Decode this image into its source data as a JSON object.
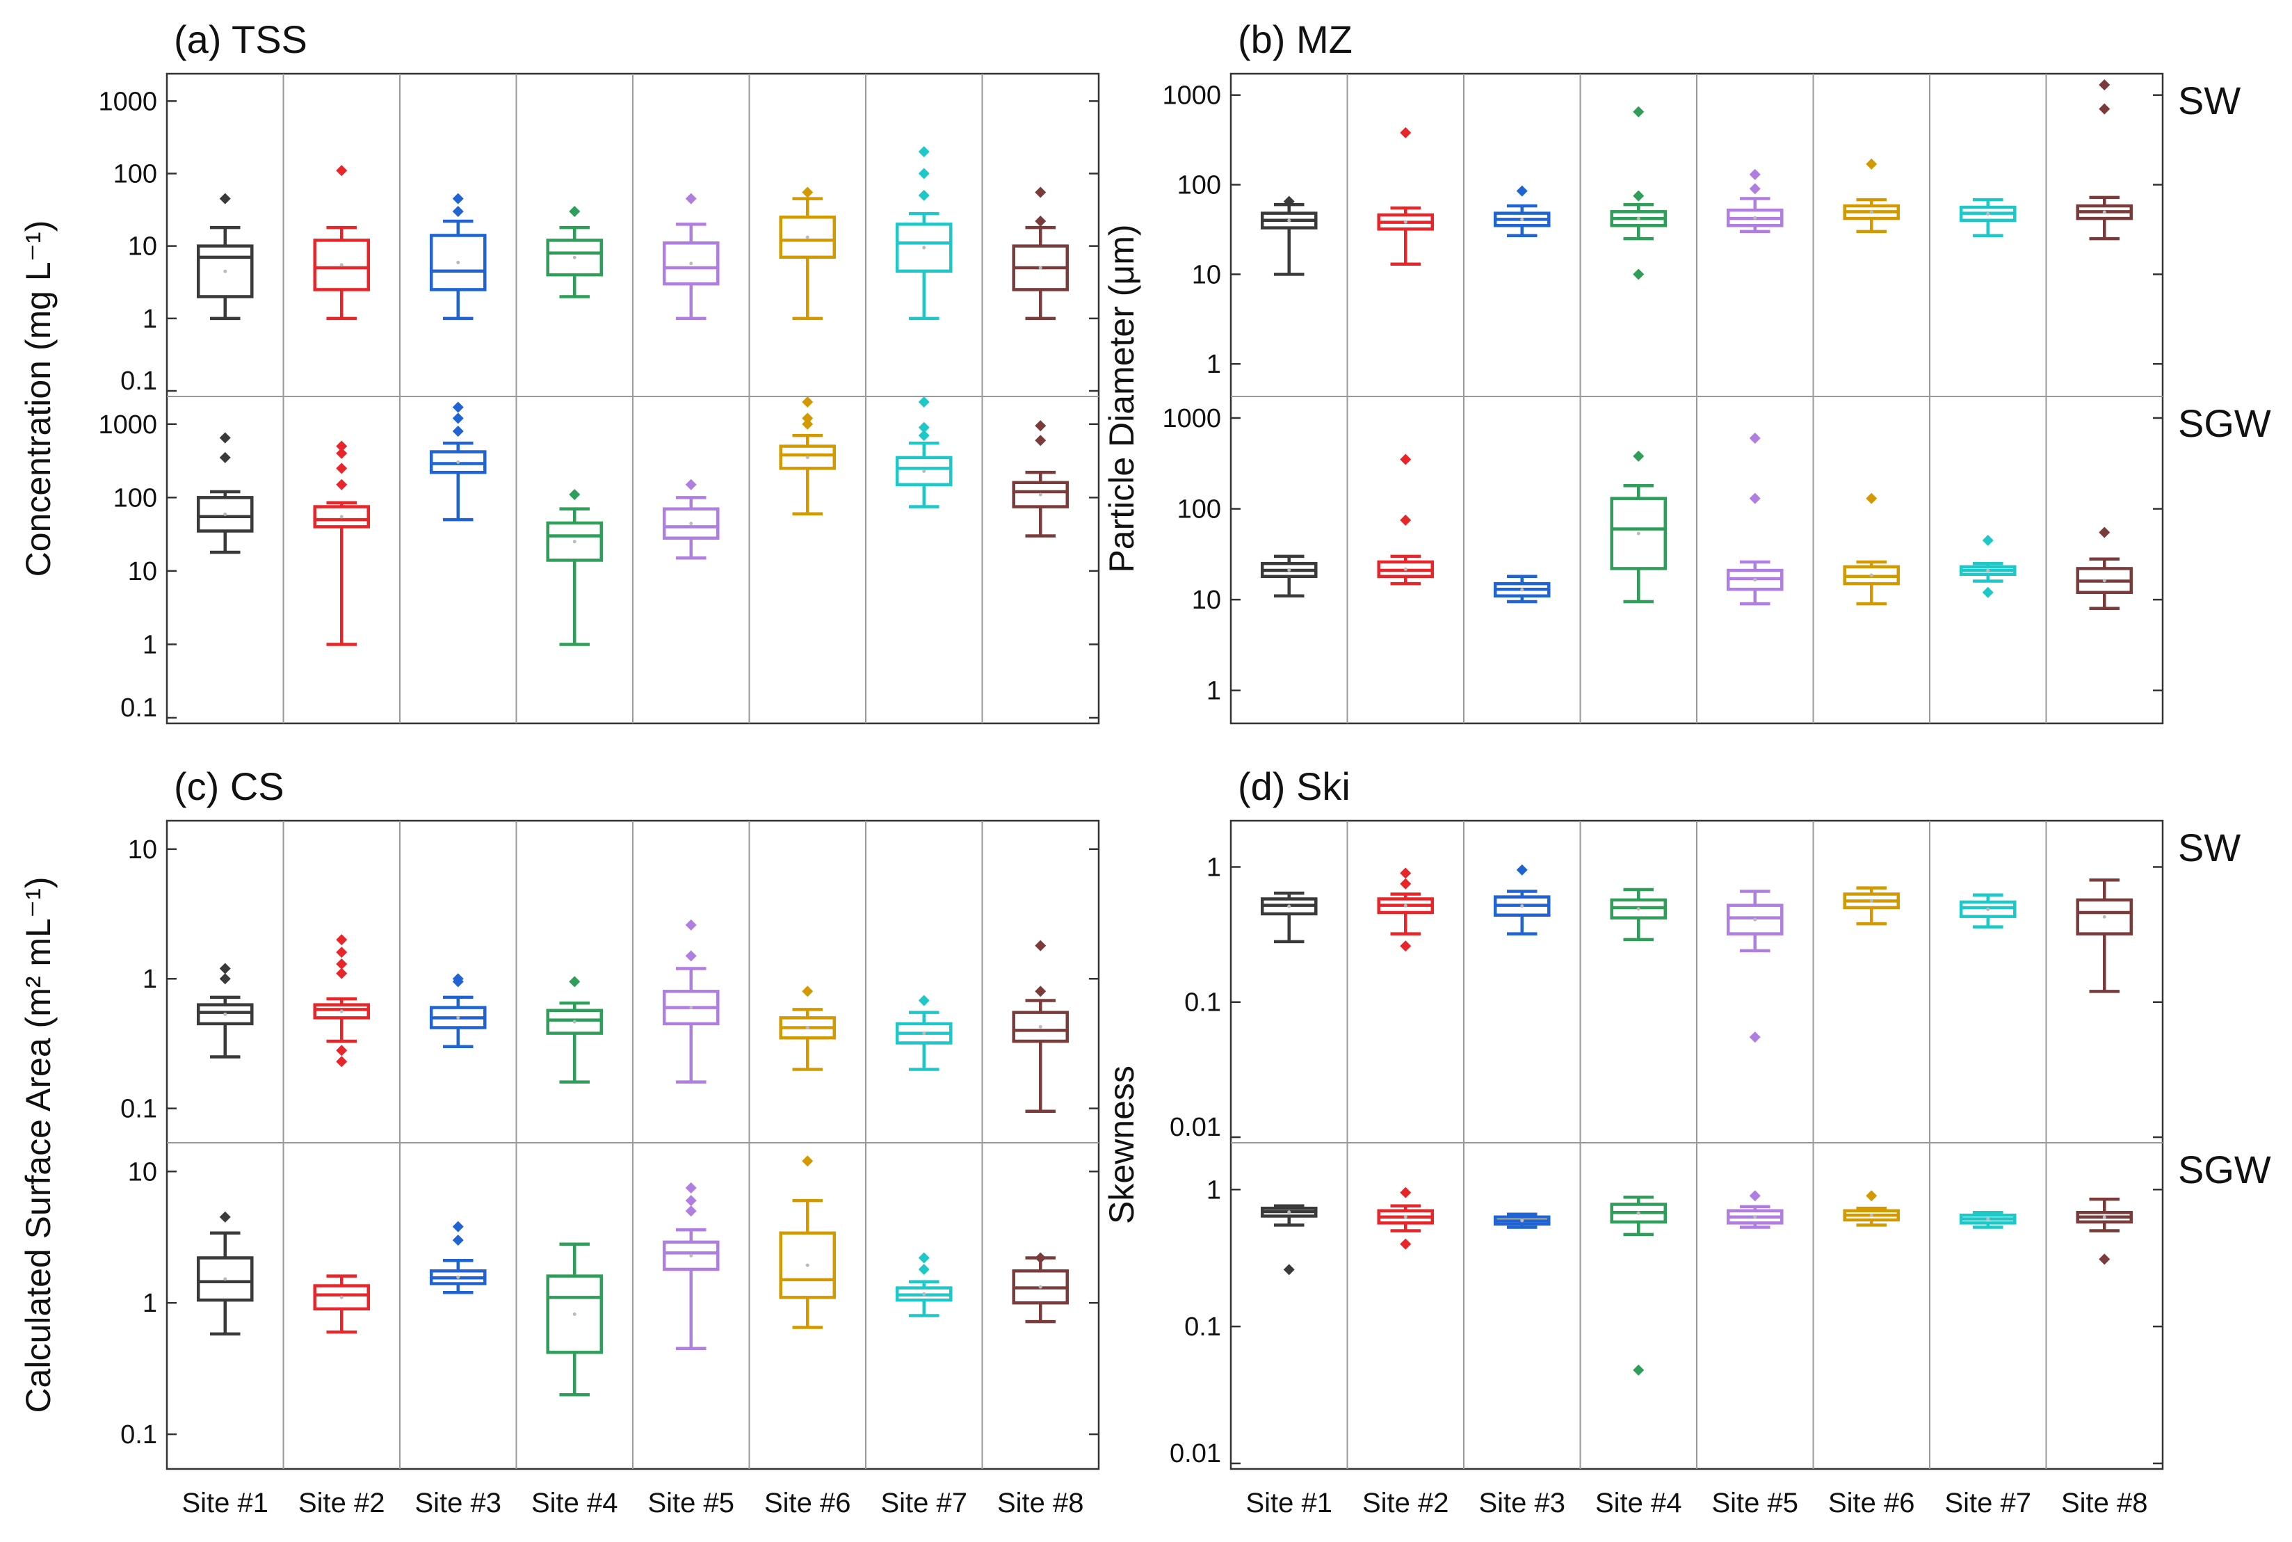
{
  "chart_data": {
    "type": "box",
    "sites": [
      "Site #1",
      "Site #2",
      "Site #3",
      "Site #4",
      "Site #5",
      "Site #6",
      "Site #7",
      "Site #8"
    ],
    "colors": [
      "#3a3a3a",
      "#e8262a",
      "#1f64d2",
      "#2e9e59",
      "#b07ee0",
      "#d39a00",
      "#1ec8c8",
      "#7a3b3b"
    ],
    "groups": [
      "SW",
      "SGW"
    ],
    "panels": [
      {
        "title": "(a) TSS",
        "ylabel": "Concentration (mg L⁻¹)",
        "scale": "log",
        "sub": [
          {
            "group": "SW",
            "ylim": [
              0.1,
              2000
            ],
            "ticks": [
              "1000",
              "100",
              "10",
              "1",
              "0.1"
            ],
            "tickvals": [
              1000,
              100,
              10,
              1,
              0.1
            ],
            "boxes": [
              {
                "q1": 2,
                "med": 7,
                "q3": 10,
                "lo": 1,
                "hi": 18,
                "out": [
                  45
                ]
              },
              {
                "q1": 2.5,
                "med": 5,
                "q3": 12,
                "lo": 1,
                "hi": 18,
                "out": [
                  110
                ]
              },
              {
                "q1": 2.5,
                "med": 4.5,
                "q3": 14,
                "lo": 1,
                "hi": 22,
                "out": [
                  30,
                  45
                ]
              },
              {
                "q1": 4,
                "med": 8,
                "q3": 12,
                "lo": 2,
                "hi": 18,
                "out": [
                  30
                ]
              },
              {
                "q1": 3,
                "med": 5,
                "q3": 11,
                "lo": 1,
                "hi": 20,
                "out": [
                  45
                ]
              },
              {
                "q1": 7,
                "med": 12,
                "q3": 25,
                "lo": 1,
                "hi": 45,
                "out": [
                  55
                ]
              },
              {
                "q1": 4.5,
                "med": 11,
                "q3": 20,
                "lo": 1,
                "hi": 28,
                "out": [
                  50,
                  100,
                  200
                ]
              },
              {
                "q1": 2.5,
                "med": 5,
                "q3": 10,
                "lo": 1,
                "hi": 18,
                "out": [
                  22,
                  55
                ]
              }
            ]
          },
          {
            "group": "SGW",
            "ylim": [
              0.1,
              2000
            ],
            "ticks": [
              "1000",
              "100",
              "10",
              "1",
              "0.1"
            ],
            "tickvals": [
              1000,
              100,
              10,
              1,
              0.1
            ],
            "boxes": [
              {
                "q1": 35,
                "med": 55,
                "q3": 100,
                "lo": 18,
                "hi": 120,
                "out": [
                  350,
                  650
                ]
              },
              {
                "q1": 40,
                "med": 50,
                "q3": 75,
                "lo": 1,
                "hi": 85,
                "out": [
                  150,
                  250,
                  400,
                  500
                ]
              },
              {
                "q1": 220,
                "med": 290,
                "q3": 420,
                "lo": 50,
                "hi": 550,
                "out": [
                  800,
                  1200,
                  1700
                ]
              },
              {
                "q1": 14,
                "med": 30,
                "q3": 45,
                "lo": 1,
                "hi": 70,
                "out": [
                  110
                ]
              },
              {
                "q1": 28,
                "med": 40,
                "q3": 70,
                "lo": 15,
                "hi": 100,
                "out": [
                  150
                ]
              },
              {
                "q1": 250,
                "med": 380,
                "q3": 500,
                "lo": 60,
                "hi": 700,
                "out": [
                  1000,
                  1200,
                  2000
                ]
              },
              {
                "q1": 150,
                "med": 250,
                "q3": 350,
                "lo": 75,
                "hi": 550,
                "out": [
                  700,
                  900,
                  2000
                ]
              },
              {
                "q1": 75,
                "med": 120,
                "q3": 160,
                "lo": 30,
                "hi": 220,
                "out": [
                  600,
                  950
                ]
              }
            ]
          }
        ]
      },
      {
        "title": "(b) MZ",
        "ylabel": "Particle Diameter (μm)",
        "scale": "log",
        "sub": [
          {
            "group": "SW",
            "ylim": [
              0.5,
              1500
            ],
            "ticks": [
              "1000",
              "100",
              "10",
              "1"
            ],
            "tickvals": [
              1000,
              100,
              10,
              1
            ],
            "boxes": [
              {
                "q1": 33,
                "med": 40,
                "q3": 48,
                "lo": 10,
                "hi": 60,
                "out": [
                  65
                ]
              },
              {
                "q1": 32,
                "med": 38,
                "q3": 46,
                "lo": 13,
                "hi": 55,
                "out": [
                  380
                ]
              },
              {
                "q1": 35,
                "med": 41,
                "q3": 48,
                "lo": 27,
                "hi": 58,
                "out": [
                  85
                ]
              },
              {
                "q1": 35,
                "med": 42,
                "q3": 50,
                "lo": 25,
                "hi": 60,
                "out": [
                  10,
                  75,
                  650
                ]
              },
              {
                "q1": 35,
                "med": 42,
                "q3": 52,
                "lo": 30,
                "hi": 70,
                "out": [
                  90,
                  130
                ]
              },
              {
                "q1": 42,
                "med": 50,
                "q3": 58,
                "lo": 30,
                "hi": 68,
                "out": [
                  170
                ]
              },
              {
                "q1": 40,
                "med": 48,
                "q3": 56,
                "lo": 27,
                "hi": 68,
                "out": []
              },
              {
                "q1": 42,
                "med": 50,
                "q3": 58,
                "lo": 25,
                "hi": 72,
                "out": [
                  700,
                  1300
                ]
              }
            ]
          },
          {
            "group": "SGW",
            "ylim": [
              0.5,
              1500
            ],
            "ticks": [
              "1000",
              "100",
              "10",
              "1"
            ],
            "tickvals": [
              1000,
              100,
              10,
              1
            ],
            "boxes": [
              {
                "q1": 18,
                "med": 21,
                "q3": 25,
                "lo": 11,
                "hi": 30,
                "out": []
              },
              {
                "q1": 18,
                "med": 21,
                "q3": 26,
                "lo": 15,
                "hi": 30,
                "out": [
                  75,
                  350
                ]
              },
              {
                "q1": 11,
                "med": 13,
                "q3": 15,
                "lo": 9.5,
                "hi": 18,
                "out": []
              },
              {
                "q1": 22,
                "med": 60,
                "q3": 130,
                "lo": 9.5,
                "hi": 180,
                "out": [
                  380
                ]
              },
              {
                "q1": 13,
                "med": 17,
                "q3": 21,
                "lo": 9,
                "hi": 26,
                "out": [
                  130,
                  600
                ]
              },
              {
                "q1": 15,
                "med": 18,
                "q3": 23,
                "lo": 9,
                "hi": 26,
                "out": [
                  130
                ]
              },
              {
                "q1": 19,
                "med": 21,
                "q3": 23,
                "lo": 16,
                "hi": 25,
                "out": [
                  12,
                  45
                ]
              },
              {
                "q1": 12,
                "med": 16,
                "q3": 22,
                "lo": 8,
                "hi": 28,
                "out": [
                  55
                ]
              }
            ]
          }
        ]
      },
      {
        "title": "(c) CS",
        "ylabel": "Calculated Surface Area (m² mL⁻¹)",
        "scale": "log",
        "sub": [
          {
            "group": "SW",
            "ylim": [
              0.06,
              15
            ],
            "ticks": [
              "10",
              "1",
              "0.1"
            ],
            "tickvals": [
              10,
              1,
              0.1
            ],
            "boxes": [
              {
                "q1": 0.45,
                "med": 0.55,
                "q3": 0.63,
                "lo": 0.25,
                "hi": 0.72,
                "out": [
                  1,
                  1.2
                ]
              },
              {
                "q1": 0.5,
                "med": 0.58,
                "q3": 0.63,
                "lo": 0.33,
                "hi": 0.7,
                "out": [
                  0.23,
                  0.28,
                  1.1,
                  1.3,
                  1.6,
                  2
                ]
              },
              {
                "q1": 0.42,
                "med": 0.5,
                "q3": 0.6,
                "lo": 0.3,
                "hi": 0.72,
                "out": [
                  0.95,
                  1
                ]
              },
              {
                "q1": 0.38,
                "med": 0.48,
                "q3": 0.57,
                "lo": 0.16,
                "hi": 0.65,
                "out": [
                  0.95
                ]
              },
              {
                "q1": 0.45,
                "med": 0.6,
                "q3": 0.8,
                "lo": 0.16,
                "hi": 1.2,
                "out": [
                  1.5,
                  2.6
                ]
              },
              {
                "q1": 0.35,
                "med": 0.42,
                "q3": 0.5,
                "lo": 0.2,
                "hi": 0.58,
                "out": [
                  0.8
                ]
              },
              {
                "q1": 0.32,
                "med": 0.38,
                "q3": 0.45,
                "lo": 0.2,
                "hi": 0.55,
                "out": [
                  0.68
                ]
              },
              {
                "q1": 0.33,
                "med": 0.4,
                "q3": 0.55,
                "lo": 0.095,
                "hi": 0.68,
                "out": [
                  0.8,
                  1.8
                ]
              }
            ]
          },
          {
            "group": "SGW",
            "ylim": [
              0.06,
              15
            ],
            "ticks": [
              "10",
              "1",
              "0.1"
            ],
            "tickvals": [
              10,
              1,
              0.1
            ],
            "boxes": [
              {
                "q1": 1.05,
                "med": 1.45,
                "q3": 2.2,
                "lo": 0.58,
                "hi": 3.4,
                "out": [
                  4.5
                ]
              },
              {
                "q1": 0.9,
                "med": 1.15,
                "q3": 1.35,
                "lo": 0.6,
                "hi": 1.6,
                "out": []
              },
              {
                "q1": 1.4,
                "med": 1.55,
                "q3": 1.75,
                "lo": 1.2,
                "hi": 2.1,
                "out": [
                  3,
                  3.8
                ]
              },
              {
                "q1": 0.42,
                "med": 1.1,
                "q3": 1.6,
                "lo": 0.2,
                "hi": 2.8,
                "out": []
              },
              {
                "q1": 1.8,
                "med": 2.4,
                "q3": 2.9,
                "lo": 0.45,
                "hi": 3.6,
                "out": [
                  5,
                  6,
                  7.5
                ]
              },
              {
                "q1": 1.1,
                "med": 1.5,
                "q3": 3.4,
                "lo": 0.65,
                "hi": 6,
                "out": [
                  12
                ]
              },
              {
                "q1": 1.05,
                "med": 1.15,
                "q3": 1.3,
                "lo": 0.8,
                "hi": 1.45,
                "out": [
                  1.8,
                  2.2
                ]
              },
              {
                "q1": 1,
                "med": 1.3,
                "q3": 1.75,
                "lo": 0.72,
                "hi": 2.2,
                "out": [
                  2.2
                ]
              }
            ]
          }
        ]
      },
      {
        "title": "(d) Ski",
        "ylabel": "Skewness",
        "scale": "log",
        "sub": [
          {
            "group": "SW",
            "ylim": [
              0.01,
              2
            ],
            "ticks": [
              "1",
              "0.1",
              "0.01"
            ],
            "tickvals": [
              1,
              0.1,
              0.01
            ],
            "boxes": [
              {
                "q1": 0.45,
                "med": 0.52,
                "q3": 0.58,
                "lo": 0.28,
                "hi": 0.64,
                "out": []
              },
              {
                "q1": 0.46,
                "med": 0.52,
                "q3": 0.58,
                "lo": 0.32,
                "hi": 0.63,
                "out": [
                  0.26,
                  0.75,
                  0.9
                ]
              },
              {
                "q1": 0.44,
                "med": 0.52,
                "q3": 0.6,
                "lo": 0.32,
                "hi": 0.66,
                "out": [
                  0.95
                ]
              },
              {
                "q1": 0.42,
                "med": 0.5,
                "q3": 0.57,
                "lo": 0.29,
                "hi": 0.68,
                "out": []
              },
              {
                "q1": 0.32,
                "med": 0.42,
                "q3": 0.52,
                "lo": 0.24,
                "hi": 0.66,
                "out": [
                  0.055
                ]
              },
              {
                "q1": 0.5,
                "med": 0.56,
                "q3": 0.63,
                "lo": 0.38,
                "hi": 0.7,
                "out": []
              },
              {
                "q1": 0.43,
                "med": 0.5,
                "q3": 0.55,
                "lo": 0.36,
                "hi": 0.62,
                "out": []
              },
              {
                "q1": 0.32,
                "med": 0.46,
                "q3": 0.57,
                "lo": 0.12,
                "hi": 0.8,
                "out": []
              }
            ]
          },
          {
            "group": "SGW",
            "ylim": [
              0.01,
              2
            ],
            "ticks": [
              "1",
              "0.1",
              "0.01"
            ],
            "tickvals": [
              1,
              0.1,
              0.01
            ],
            "boxes": [
              {
                "q1": 0.64,
                "med": 0.69,
                "q3": 0.73,
                "lo": 0.55,
                "hi": 0.76,
                "out": [
                  0.26
                ]
              },
              {
                "q1": 0.57,
                "med": 0.63,
                "q3": 0.7,
                "lo": 0.5,
                "hi": 0.76,
                "out": [
                  0.4,
                  0.95
                ]
              },
              {
                "q1": 0.56,
                "med": 0.59,
                "q3": 0.63,
                "lo": 0.53,
                "hi": 0.66,
                "out": []
              },
              {
                "q1": 0.58,
                "med": 0.68,
                "q3": 0.78,
                "lo": 0.47,
                "hi": 0.88,
                "out": [
                  0.048
                ]
              },
              {
                "q1": 0.57,
                "med": 0.63,
                "q3": 0.7,
                "lo": 0.53,
                "hi": 0.75,
                "out": [
                  0.9
                ]
              },
              {
                "q1": 0.6,
                "med": 0.65,
                "q3": 0.7,
                "lo": 0.55,
                "hi": 0.73,
                "out": [
                  0.9
                ]
              },
              {
                "q1": 0.57,
                "med": 0.61,
                "q3": 0.65,
                "lo": 0.53,
                "hi": 0.68,
                "out": []
              },
              {
                "q1": 0.58,
                "med": 0.63,
                "q3": 0.68,
                "lo": 0.5,
                "hi": 0.85,
                "out": [
                  0.31
                ]
              }
            ]
          }
        ]
      }
    ]
  }
}
